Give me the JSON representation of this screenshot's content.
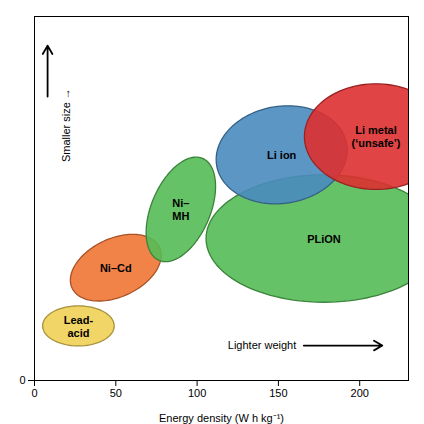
{
  "chart_data": {
    "type": "ellipse",
    "xlabel": "Energy density (W h kg⁻¹)",
    "xlim": [
      0,
      230
    ],
    "ylim": [
      0,
      500
    ],
    "xticks": [
      0,
      50,
      100,
      150,
      200
    ],
    "yticks": [
      0
    ],
    "ellipses": [
      {
        "name": "Lead-\nacid",
        "cx": 27,
        "cy": 75,
        "width": 44,
        "height": 55,
        "angle": 0,
        "color": "#f0d055"
      },
      {
        "name": "Ni–Cd",
        "cx": 50,
        "cy": 155,
        "width": 50,
        "height": 95,
        "angle": -18,
        "color": "#f07535"
      },
      {
        "name": "Ni–\nMH",
        "cx": 90,
        "cy": 235,
        "width": 38,
        "height": 145,
        "angle": -8,
        "color": "#55bb55"
      },
      {
        "name": "PLiON",
        "cx": 178,
        "cy": 195,
        "width": 145,
        "height": 175,
        "angle": 0,
        "color": "#55bb55"
      },
      {
        "name": "Li ion",
        "cx": 152,
        "cy": 310,
        "width": 80,
        "height": 135,
        "angle": -5,
        "color": "#4a8bbe"
      },
      {
        "name": "Li metal\n(‘unsafe’)",
        "cx": 210,
        "cy": 335,
        "width": 88,
        "height": 145,
        "angle": 0,
        "color": "#dd3030"
      }
    ],
    "annotations": [
      "Smaller size →",
      "Lighter weight"
    ]
  }
}
